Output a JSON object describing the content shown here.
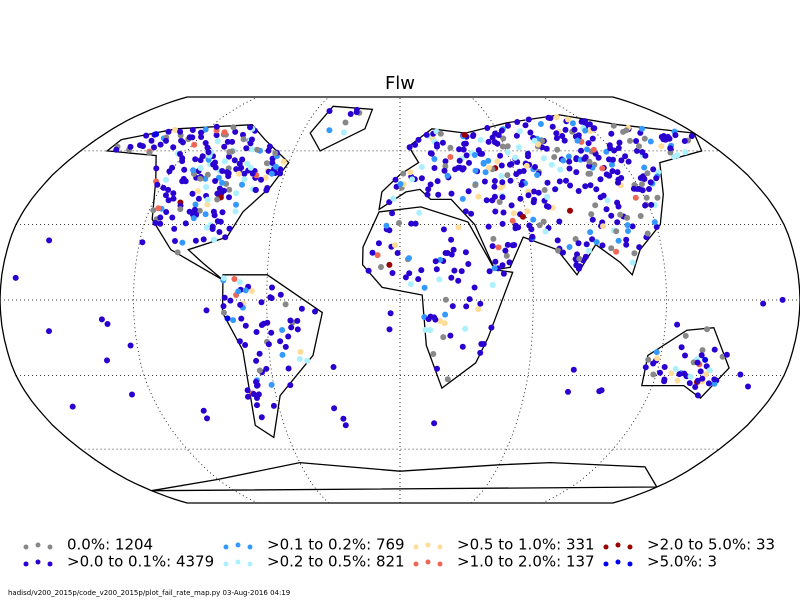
{
  "title": "Flw",
  "legend": [
    {
      "label": "0.0%: 1204",
      "color": "#888888"
    },
    {
      "label": ">0.0 to 0.1%: 4379",
      "color": "#2a00d0"
    },
    {
      "label": ">0.1 to 0.2%: 769",
      "color": "#3399ff"
    },
    {
      "label": ">0.2 to 0.5%: 821",
      "color": "#aaf0ff"
    },
    {
      "label": ">0.5 to 1.0%: 331",
      "color": "#ffdd99"
    },
    {
      "label": ">1.0 to 2.0%: 137",
      "color": "#ee6655"
    },
    {
      "label": ">2.0 to 5.0%: 33",
      "color": "#990000"
    },
    {
      "label": ">5.0%: 3",
      "color": "#0000ee"
    }
  ],
  "footer": "hadisd/v200_2015p/code_v200_2015p/plot_fail_rate_map.py   03-Aug-2016 04:19"
}
